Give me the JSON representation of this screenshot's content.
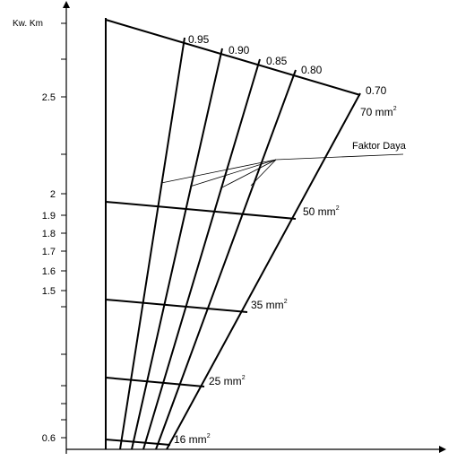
{
  "chart_data": {
    "type": "line",
    "title": "",
    "ylabel": "Kw. Km",
    "xlabel": "",
    "ylim": [
      0.55,
      3.5
    ],
    "y_scale": "log",
    "grid": false,
    "y_ticks": [
      {
        "value": 0.6,
        "label": "0.6"
      },
      {
        "value": 0.65,
        "label": ""
      },
      {
        "value": 0.7,
        "label": ""
      },
      {
        "value": 0.75,
        "label": ""
      },
      {
        "value": 0.8,
        "label": ""
      },
      {
        "value": 1.0,
        "label": ""
      },
      {
        "value": 1.5,
        "label": "1.5"
      },
      {
        "value": 1.6,
        "label": "1.6"
      },
      {
        "value": 1.7,
        "label": "1.7"
      },
      {
        "value": 1.8,
        "label": "1.8"
      },
      {
        "value": 1.9,
        "label": "1.9"
      },
      {
        "value": 2.0,
        "label": "2"
      },
      {
        "value": 2.25,
        "label": ""
      },
      {
        "value": 2.5,
        "label": "2.5"
      },
      {
        "value": 3.0,
        "label": ""
      },
      {
        "value": 3.3,
        "label": ""
      }
    ],
    "power_factor_lines": [
      {
        "label": "0.95",
        "value": 0.95
      },
      {
        "label": "0.90",
        "value": 0.9
      },
      {
        "label": "0.85",
        "value": 0.85
      },
      {
        "label": "0.80",
        "value": 0.8
      },
      {
        "label": "0.70",
        "value": 0.7
      }
    ],
    "cross_section_lines": [
      {
        "label": "70 mm",
        "unit_sup": "2"
      },
      {
        "label": "50 mm",
        "unit_sup": "2"
      },
      {
        "label": "35 mm",
        "unit_sup": "2"
      },
      {
        "label": "25 mm",
        "unit_sup": "2"
      },
      {
        "label": "16 mm",
        "unit_sup": "2"
      }
    ],
    "annotations": [
      {
        "text": "Faktor Daya"
      }
    ]
  }
}
